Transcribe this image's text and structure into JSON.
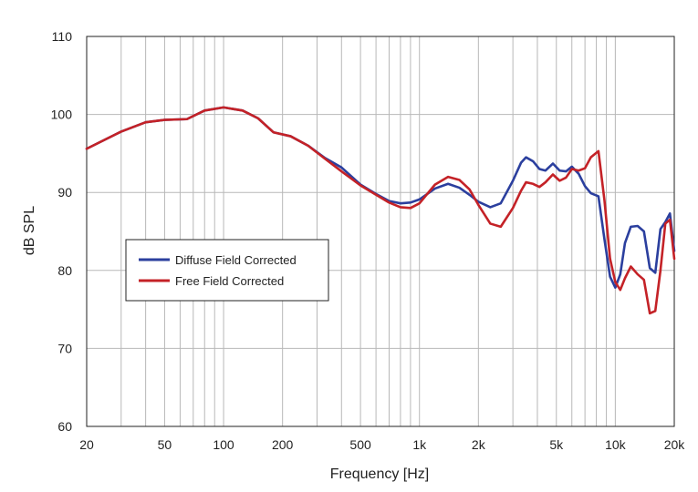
{
  "chart_data": {
    "type": "line",
    "title": "",
    "xlabel": "Frequency [Hz]",
    "ylabel": "dB SPL",
    "x_scale": "log",
    "xlim": [
      20,
      20000
    ],
    "ylim": [
      60,
      110
    ],
    "grid": true,
    "legend_position": "left-middle",
    "x_ticks": [
      {
        "value": 20,
        "label": "20"
      },
      {
        "value": 50,
        "label": "50"
      },
      {
        "value": 100,
        "label": "100"
      },
      {
        "value": 200,
        "label": "200"
      },
      {
        "value": 500,
        "label": "500"
      },
      {
        "value": 1000,
        "label": "1k"
      },
      {
        "value": 2000,
        "label": "2k"
      },
      {
        "value": 5000,
        "label": "5k"
      },
      {
        "value": 10000,
        "label": "10k"
      },
      {
        "value": 20000,
        "label": "20k"
      }
    ],
    "y_ticks": [
      {
        "value": 60,
        "label": "60"
      },
      {
        "value": 70,
        "label": "70"
      },
      {
        "value": 80,
        "label": "80"
      },
      {
        "value": 90,
        "label": "90"
      },
      {
        "value": 100,
        "label": "100"
      },
      {
        "value": 110,
        "label": "110"
      }
    ],
    "series": [
      {
        "name": "Diffuse Field Corrected",
        "color": "#2b3f9e",
        "points": [
          [
            20,
            95.6
          ],
          [
            30,
            97.8
          ],
          [
            40,
            99.0
          ],
          [
            50,
            99.3
          ],
          [
            65,
            99.4
          ],
          [
            80,
            100.5
          ],
          [
            100,
            100.9
          ],
          [
            125,
            100.5
          ],
          [
            150,
            99.5
          ],
          [
            180,
            97.7
          ],
          [
            220,
            97.2
          ],
          [
            270,
            96.0
          ],
          [
            330,
            94.4
          ],
          [
            400,
            93.2
          ],
          [
            500,
            91.0
          ],
          [
            600,
            89.8
          ],
          [
            700,
            88.9
          ],
          [
            800,
            88.6
          ],
          [
            900,
            88.7
          ],
          [
            1000,
            89.1
          ],
          [
            1200,
            90.5
          ],
          [
            1400,
            91.1
          ],
          [
            1600,
            90.6
          ],
          [
            1800,
            89.7
          ],
          [
            2000,
            88.8
          ],
          [
            2300,
            88.1
          ],
          [
            2600,
            88.6
          ],
          [
            3000,
            91.5
          ],
          [
            3300,
            93.8
          ],
          [
            3500,
            94.5
          ],
          [
            3800,
            94.0
          ],
          [
            4100,
            93.0
          ],
          [
            4400,
            92.8
          ],
          [
            4800,
            93.7
          ],
          [
            5200,
            92.8
          ],
          [
            5600,
            92.7
          ],
          [
            6000,
            93.3
          ],
          [
            6500,
            92.4
          ],
          [
            7000,
            90.8
          ],
          [
            7500,
            89.9
          ],
          [
            8200,
            89.5
          ],
          [
            8800,
            84.0
          ],
          [
            9400,
            79.2
          ],
          [
            10000,
            77.8
          ],
          [
            10600,
            79.5
          ],
          [
            11200,
            83.5
          ],
          [
            12000,
            85.6
          ],
          [
            13000,
            85.7
          ],
          [
            14000,
            85.0
          ],
          [
            15000,
            80.3
          ],
          [
            16000,
            79.7
          ],
          [
            17000,
            85.3
          ],
          [
            18000,
            86.2
          ],
          [
            19000,
            87.3
          ],
          [
            20000,
            82.5
          ]
        ]
      },
      {
        "name": "Free Field Corrected",
        "color": "#c42227",
        "points": [
          [
            20,
            95.6
          ],
          [
            30,
            97.8
          ],
          [
            40,
            99.0
          ],
          [
            50,
            99.3
          ],
          [
            65,
            99.4
          ],
          [
            80,
            100.5
          ],
          [
            100,
            100.9
          ],
          [
            125,
            100.5
          ],
          [
            150,
            99.5
          ],
          [
            180,
            97.7
          ],
          [
            220,
            97.2
          ],
          [
            270,
            96.0
          ],
          [
            330,
            94.3
          ],
          [
            400,
            92.7
          ],
          [
            500,
            90.9
          ],
          [
            600,
            89.7
          ],
          [
            700,
            88.7
          ],
          [
            800,
            88.1
          ],
          [
            900,
            88.0
          ],
          [
            1000,
            88.6
          ],
          [
            1200,
            91.0
          ],
          [
            1400,
            92.0
          ],
          [
            1600,
            91.6
          ],
          [
            1800,
            90.4
          ],
          [
            2000,
            88.4
          ],
          [
            2300,
            86.0
          ],
          [
            2600,
            85.6
          ],
          [
            3000,
            88.0
          ],
          [
            3300,
            90.2
          ],
          [
            3500,
            91.3
          ],
          [
            3800,
            91.1
          ],
          [
            4100,
            90.7
          ],
          [
            4400,
            91.3
          ],
          [
            4800,
            92.3
          ],
          [
            5200,
            91.5
          ],
          [
            5600,
            91.9
          ],
          [
            6000,
            93.0
          ],
          [
            6500,
            92.8
          ],
          [
            7000,
            93.1
          ],
          [
            7500,
            94.5
          ],
          [
            8200,
            95.3
          ],
          [
            8800,
            89.0
          ],
          [
            9400,
            81.5
          ],
          [
            10000,
            78.5
          ],
          [
            10600,
            77.5
          ],
          [
            11200,
            79.0
          ],
          [
            12000,
            80.5
          ],
          [
            13000,
            79.5
          ],
          [
            14000,
            78.8
          ],
          [
            15000,
            74.5
          ],
          [
            16000,
            74.8
          ],
          [
            17000,
            80.0
          ],
          [
            18000,
            86.0
          ],
          [
            19000,
            86.5
          ],
          [
            20000,
            81.5
          ]
        ]
      }
    ]
  }
}
